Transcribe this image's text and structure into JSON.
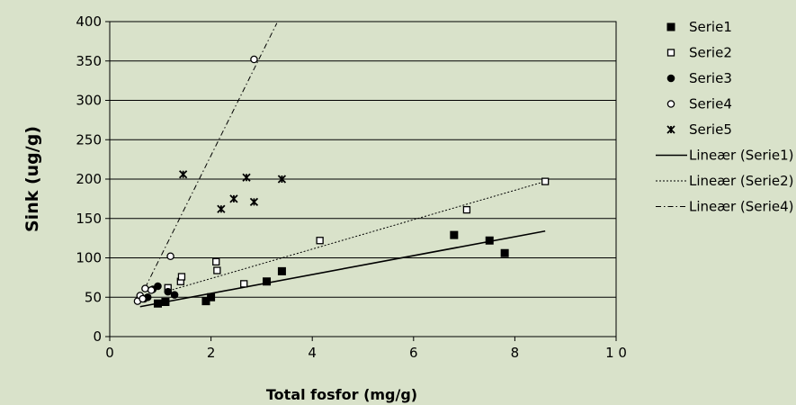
{
  "chart_data": {
    "type": "scatter",
    "xlabel": "Total fosfor (mg/g)",
    "ylabel": "Sink (ug/g)",
    "xlim": [
      0,
      10
    ],
    "ylim": [
      0,
      400
    ],
    "xticks": [
      0,
      2,
      4,
      6,
      8,
      10
    ],
    "xtick_labels": [
      "0",
      "2",
      "4",
      "6",
      "8",
      "1 0"
    ],
    "yticks": [
      0,
      50,
      100,
      150,
      200,
      250,
      300,
      350,
      400
    ],
    "ytick_labels": [
      "0",
      "50",
      "100",
      "150",
      "200",
      "250",
      "300",
      "350",
      "400"
    ],
    "grid": "horizontal",
    "legend_position": "right",
    "series": [
      {
        "name": "Serie1",
        "marker": "filled-square",
        "x": [
          0.95,
          1.1,
          1.9,
          2.0,
          3.1,
          3.4,
          6.8,
          7.5,
          7.8
        ],
        "y": [
          42,
          44,
          45,
          50,
          70,
          83,
          129,
          122,
          106
        ]
      },
      {
        "name": "Serie2",
        "marker": "open-square",
        "x": [
          1.15,
          1.4,
          1.42,
          2.1,
          2.12,
          2.65,
          4.15,
          7.05,
          8.6
        ],
        "y": [
          62,
          70,
          76,
          95,
          84,
          67,
          122,
          161,
          197
        ]
      },
      {
        "name": "Serie3",
        "marker": "filled-circle",
        "x": [
          0.68,
          0.75,
          0.85,
          0.95,
          1.15,
          1.28
        ],
        "y": [
          48,
          50,
          60,
          64,
          57,
          53
        ]
      },
      {
        "name": "Serie4",
        "marker": "open-circle",
        "x": [
          0.55,
          0.6,
          0.65,
          0.7,
          0.82,
          1.2,
          2.85
        ],
        "y": [
          45,
          52,
          48,
          61,
          59,
          102,
          352
        ]
      },
      {
        "name": "Serie5",
        "marker": "star",
        "x": [
          1.45,
          2.2,
          2.45,
          2.7,
          2.85,
          3.4
        ],
        "y": [
          206,
          162,
          175,
          202,
          171,
          200
        ]
      }
    ],
    "trendlines": [
      {
        "name": "Lineær (Serie1)",
        "style": "solid",
        "x": [
          0.6,
          8.6
        ],
        "y": [
          38,
          134
        ]
      },
      {
        "name": "Lineær (Serie2)",
        "style": "dotted",
        "x": [
          1.1,
          8.6
        ],
        "y": [
          57,
          197
        ]
      },
      {
        "name": "Lineær (Serie4)",
        "style": "dashdot",
        "x": [
          0.7,
          3.3
        ],
        "y": [
          62,
          398
        ]
      }
    ]
  }
}
